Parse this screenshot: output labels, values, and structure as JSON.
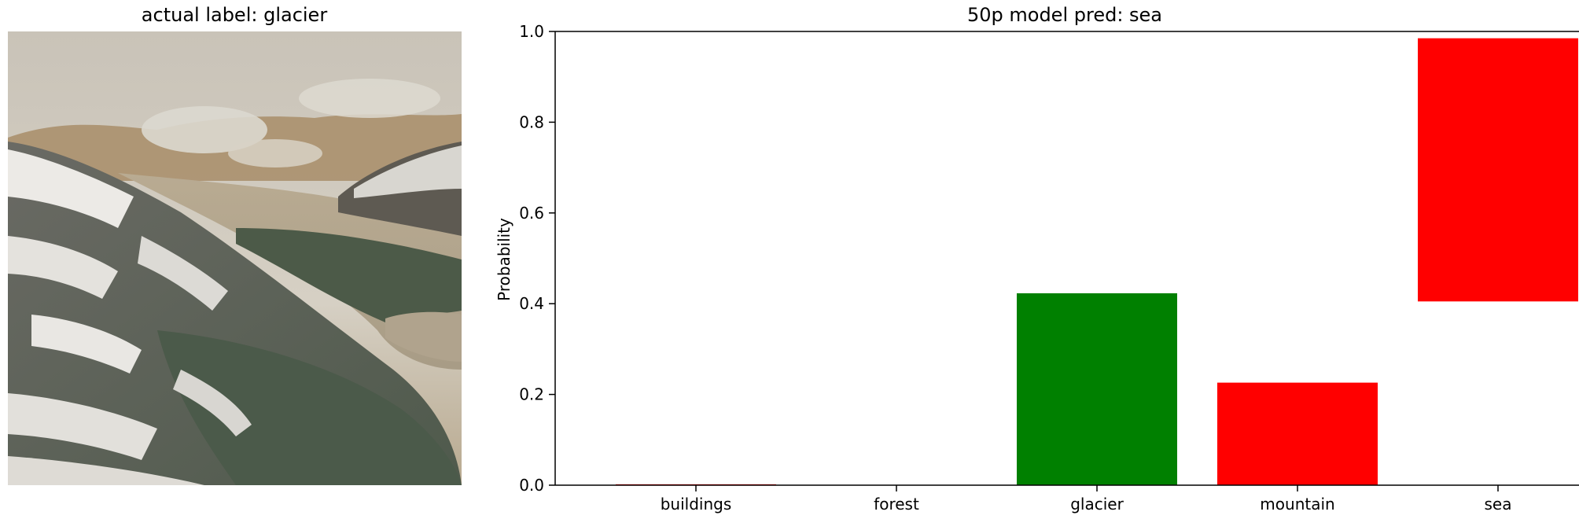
{
  "image_panel": {
    "title": "actual label: glacier",
    "subject": "snow-covered mountain valley with lake and low clouds"
  },
  "chart_data": {
    "type": "bar",
    "title": "50p model pred: sea",
    "xlabel": "",
    "ylabel": "Probability",
    "ylim": [
      0,
      1.0
    ],
    "yticks": [
      "0.0",
      "0.2",
      "0.4",
      "0.6",
      "0.8",
      "1.0"
    ],
    "categories": [
      "buildings",
      "forest",
      "glacier",
      "mountain",
      "sea"
    ],
    "bars": [
      {
        "category": "buildings",
        "bottom": 0.0,
        "top": 0.002,
        "color": "#ff0000"
      },
      {
        "category": "forest",
        "bottom": 0.0,
        "top": 0.0,
        "color": "#ff0000"
      },
      {
        "category": "glacier",
        "bottom": 0.0,
        "top": 0.423,
        "color": "#008000"
      },
      {
        "category": "mountain",
        "bottom": 0.0,
        "top": 0.226,
        "color": "#ff0000"
      },
      {
        "category": "sea",
        "bottom": 0.405,
        "top": 0.985,
        "color": "#ff0000"
      }
    ],
    "grid": false,
    "spines": [
      "left",
      "top",
      "bottom"
    ]
  }
}
